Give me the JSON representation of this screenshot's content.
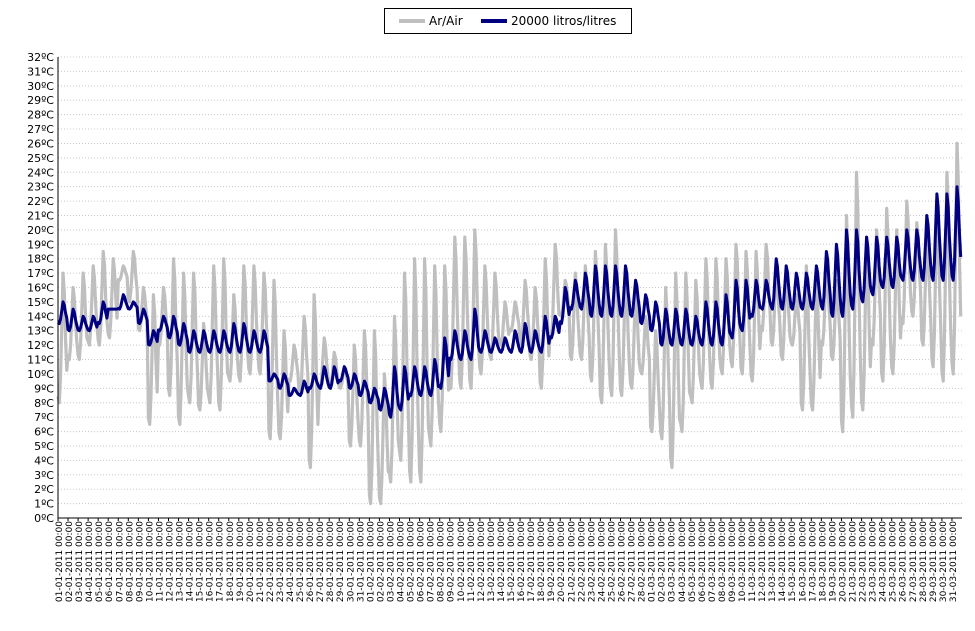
{
  "chart_data": {
    "type": "line",
    "title": "",
    "xlabel": "",
    "ylabel": "",
    "ylim": [
      0,
      32
    ],
    "ytick_step": 1,
    "ytick_suffix": "ºC",
    "grid": "horizontal dotted",
    "legend_placement": "top-center",
    "colors": {
      "air": "#bfbfbf",
      "tank": "#000080"
    },
    "x_tick_labels": [
      "01-01-2011 00:00",
      "02-01-2011 00:00",
      "03-01-2011 00:00",
      "04-01-2011 00:00",
      "05-01-2011 00:00",
      "06-01-2011 00:00",
      "07-01-2011 00:00",
      "08-01-2011 00:00",
      "09-01-2011 00:00",
      "10-01-2011 00:00",
      "11-01-2011 00:00",
      "12-01-2011 00:00",
      "13-01-2011 00:00",
      "14-01-2011 00:00",
      "15-01-2011 00:00",
      "16-01-2011 00:00",
      "17-01-2011 00:00",
      "18-01-2011 00:00",
      "19-01-2011 00:00",
      "20-01-2011 00:00",
      "21-01-2011 00:00",
      "22-01-2011 00:00",
      "23-01-2011 00:00",
      "24-01-2011 00:00",
      "25-01-2011 00:00",
      "26-01-2011 00:00",
      "27-01-2011 00:00",
      "28-01-2011 00:00",
      "29-01-2011 00:00",
      "30-01-2011 00:00",
      "31-01-2011 00:00",
      "01-02-2011 00:00",
      "02-02-2011 00:00",
      "03-02-2011 00:00",
      "04-02-2011 00:00",
      "05-02-2011 00:00",
      "06-02-2011 00:00",
      "07-02-2011 00:00",
      "08-02-2011 00:00",
      "09-02-2011 00:00",
      "10-02-2011 00:00",
      "11-02-2011 00:00",
      "12-02-2011 00:00",
      "13-02-2011 00:00",
      "14-02-2011 00:00",
      "15-02-2011 00:00",
      "16-02-2011 00:00",
      "17-02-2011 00:00",
      "18-02-2011 00:00",
      "19-02-2011 00:00",
      "20-02-2011 00:00",
      "21-02-2011 00:00",
      "22-02-2011 00:00",
      "23-02-2011 00:00",
      "24-02-2011 00:00",
      "25-02-2011 00:00",
      "26-02-2011 00:00",
      "27-02-2011 00:00",
      "28-02-2011 00:00",
      "01-03-2011 00:00",
      "02-03-2011 00:00",
      "03-03-2011 00:00",
      "04-03-2011 00:00",
      "05-03-2011 00:00",
      "06-03-2011 00:00",
      "07-03-2011 00:00",
      "08-03-2011 00:00",
      "09-03-2011 00:00",
      "10-03-2011 00:00",
      "11-03-2011 00:00",
      "12-03-2011 00:00",
      "13-03-2011 00:00",
      "14-03-2011 00:00",
      "15-03-2011 00:00",
      "16-03-2011 00:00",
      "17-03-2011 00:00",
      "18-03-2011 00:00",
      "19-03-2011 00:00",
      "20-03-2011 00:00",
      "21-03-2011 00:00",
      "22-03-2011 00:00",
      "23-03-2011 00:00",
      "24-03-2011 00:00",
      "25-03-2011 00:00",
      "26-03-2011 00:00",
      "27-03-2011 00:00",
      "28-03-2011 00:00",
      "29-03-2011 00:00",
      "30-03-2011 00:00",
      "31-03-2011 00:00"
    ],
    "series": [
      {
        "name": "Ar/Air",
        "daily_min": [
          8,
          11,
          11,
          12,
          12,
          12.5,
          16.5,
          15,
          13,
          6.5,
          12,
          8.5,
          6.5,
          8,
          7.5,
          8,
          7.5,
          9.5,
          9.5,
          10,
          10,
          5.5,
          5.5,
          9.5,
          8.5,
          3.5,
          9,
          9,
          9,
          5,
          5,
          1,
          1,
          2.5,
          4,
          2.5,
          2.5,
          5,
          6,
          9,
          9,
          9,
          10,
          11,
          12,
          13,
          12,
          11,
          9,
          12.5,
          14,
          11,
          11,
          9.5,
          8,
          8.5,
          8.5,
          9,
          10,
          6,
          5.5,
          3.5,
          6,
          8,
          9,
          9,
          10,
          10.5,
          10,
          9.5,
          13,
          12,
          11,
          12,
          7.5,
          7.5,
          12,
          11,
          6,
          7,
          7.5,
          12,
          9.5,
          10,
          13.5,
          14,
          12,
          10.5,
          9.5,
          10,
          14
        ],
        "daily_max": [
          17,
          16,
          17,
          17.5,
          18.5,
          18,
          17.5,
          18.5,
          16,
          15.5,
          16,
          18,
          17,
          17,
          13.5,
          17.5,
          18,
          15.5,
          17.5,
          17.5,
          17,
          16.5,
          13,
          12,
          14,
          15.5,
          12.5,
          11.5,
          10.5,
          12,
          13,
          13,
          10,
          14,
          17,
          18,
          18,
          17.5,
          17.5,
          19.5,
          19.5,
          20,
          17.5,
          17,
          15,
          15,
          16.5,
          16,
          18,
          19,
          16.5,
          17,
          17.5,
          18.5,
          19,
          20,
          17.5,
          16,
          14,
          13,
          16,
          17,
          17,
          16.5,
          18,
          18,
          18,
          19,
          18.5,
          18.5,
          19,
          17.5,
          17.5,
          15.5,
          17.5,
          16.5,
          17.5,
          16.5,
          21,
          24,
          19.5,
          20,
          21.5,
          20,
          22,
          20.5,
          20,
          22,
          24,
          26
        ]
      },
      {
        "name": "20000 litros/litres",
        "daily_min": [
          13.5,
          13,
          13,
          13,
          13.5,
          14.5,
          14.5,
          14.5,
          13.5,
          12,
          13,
          12.5,
          12,
          11.5,
          11.5,
          11.5,
          11.5,
          11.5,
          11.5,
          11.5,
          11.5,
          9.5,
          9,
          8.5,
          8.5,
          9,
          9,
          9,
          9.5,
          9,
          8.5,
          8,
          7.5,
          7,
          7.5,
          8.5,
          8.5,
          8.5,
          9,
          11,
          11,
          11,
          11.5,
          11.5,
          11.5,
          11.5,
          11.5,
          11.5,
          11.5,
          12.5,
          13.5,
          14.5,
          14.5,
          14,
          14,
          14,
          14,
          14,
          13.5,
          13,
          12,
          12,
          12,
          12,
          12,
          12,
          12,
          12.5,
          13,
          14,
          14.5,
          14.5,
          14.5,
          14.5,
          14.5,
          14.5,
          14.5,
          14,
          14,
          14.5,
          15,
          15.5,
          16,
          16,
          16.5,
          16.5,
          16.5,
          16.5,
          16.5,
          16.5
        ],
        "daily_max": [
          15,
          14.5,
          14,
          14,
          15,
          14.5,
          15.5,
          15,
          14.5,
          13,
          14,
          14,
          13.5,
          13,
          13,
          13,
          13,
          13.5,
          13.5,
          13,
          13,
          10,
          10,
          9,
          9.5,
          10,
          10.5,
          10.5,
          10.5,
          10,
          9.5,
          9,
          9,
          10.5,
          10.5,
          10.5,
          10.5,
          11,
          12.5,
          13,
          13,
          14.5,
          13,
          12.5,
          12.5,
          13,
          13.5,
          13,
          14,
          14,
          16,
          16.5,
          17,
          17.5,
          17.5,
          17.5,
          17.5,
          16.5,
          15.5,
          15,
          14.5,
          14.5,
          14.5,
          14,
          15,
          15,
          15.5,
          16.5,
          16.5,
          16.5,
          16.5,
          18,
          17.5,
          17,
          17,
          17.5,
          18.5,
          19,
          20,
          20,
          19.5,
          19.5,
          19.5,
          19.5,
          20,
          20,
          21,
          22.5,
          22.5,
          23
        ]
      }
    ]
  }
}
